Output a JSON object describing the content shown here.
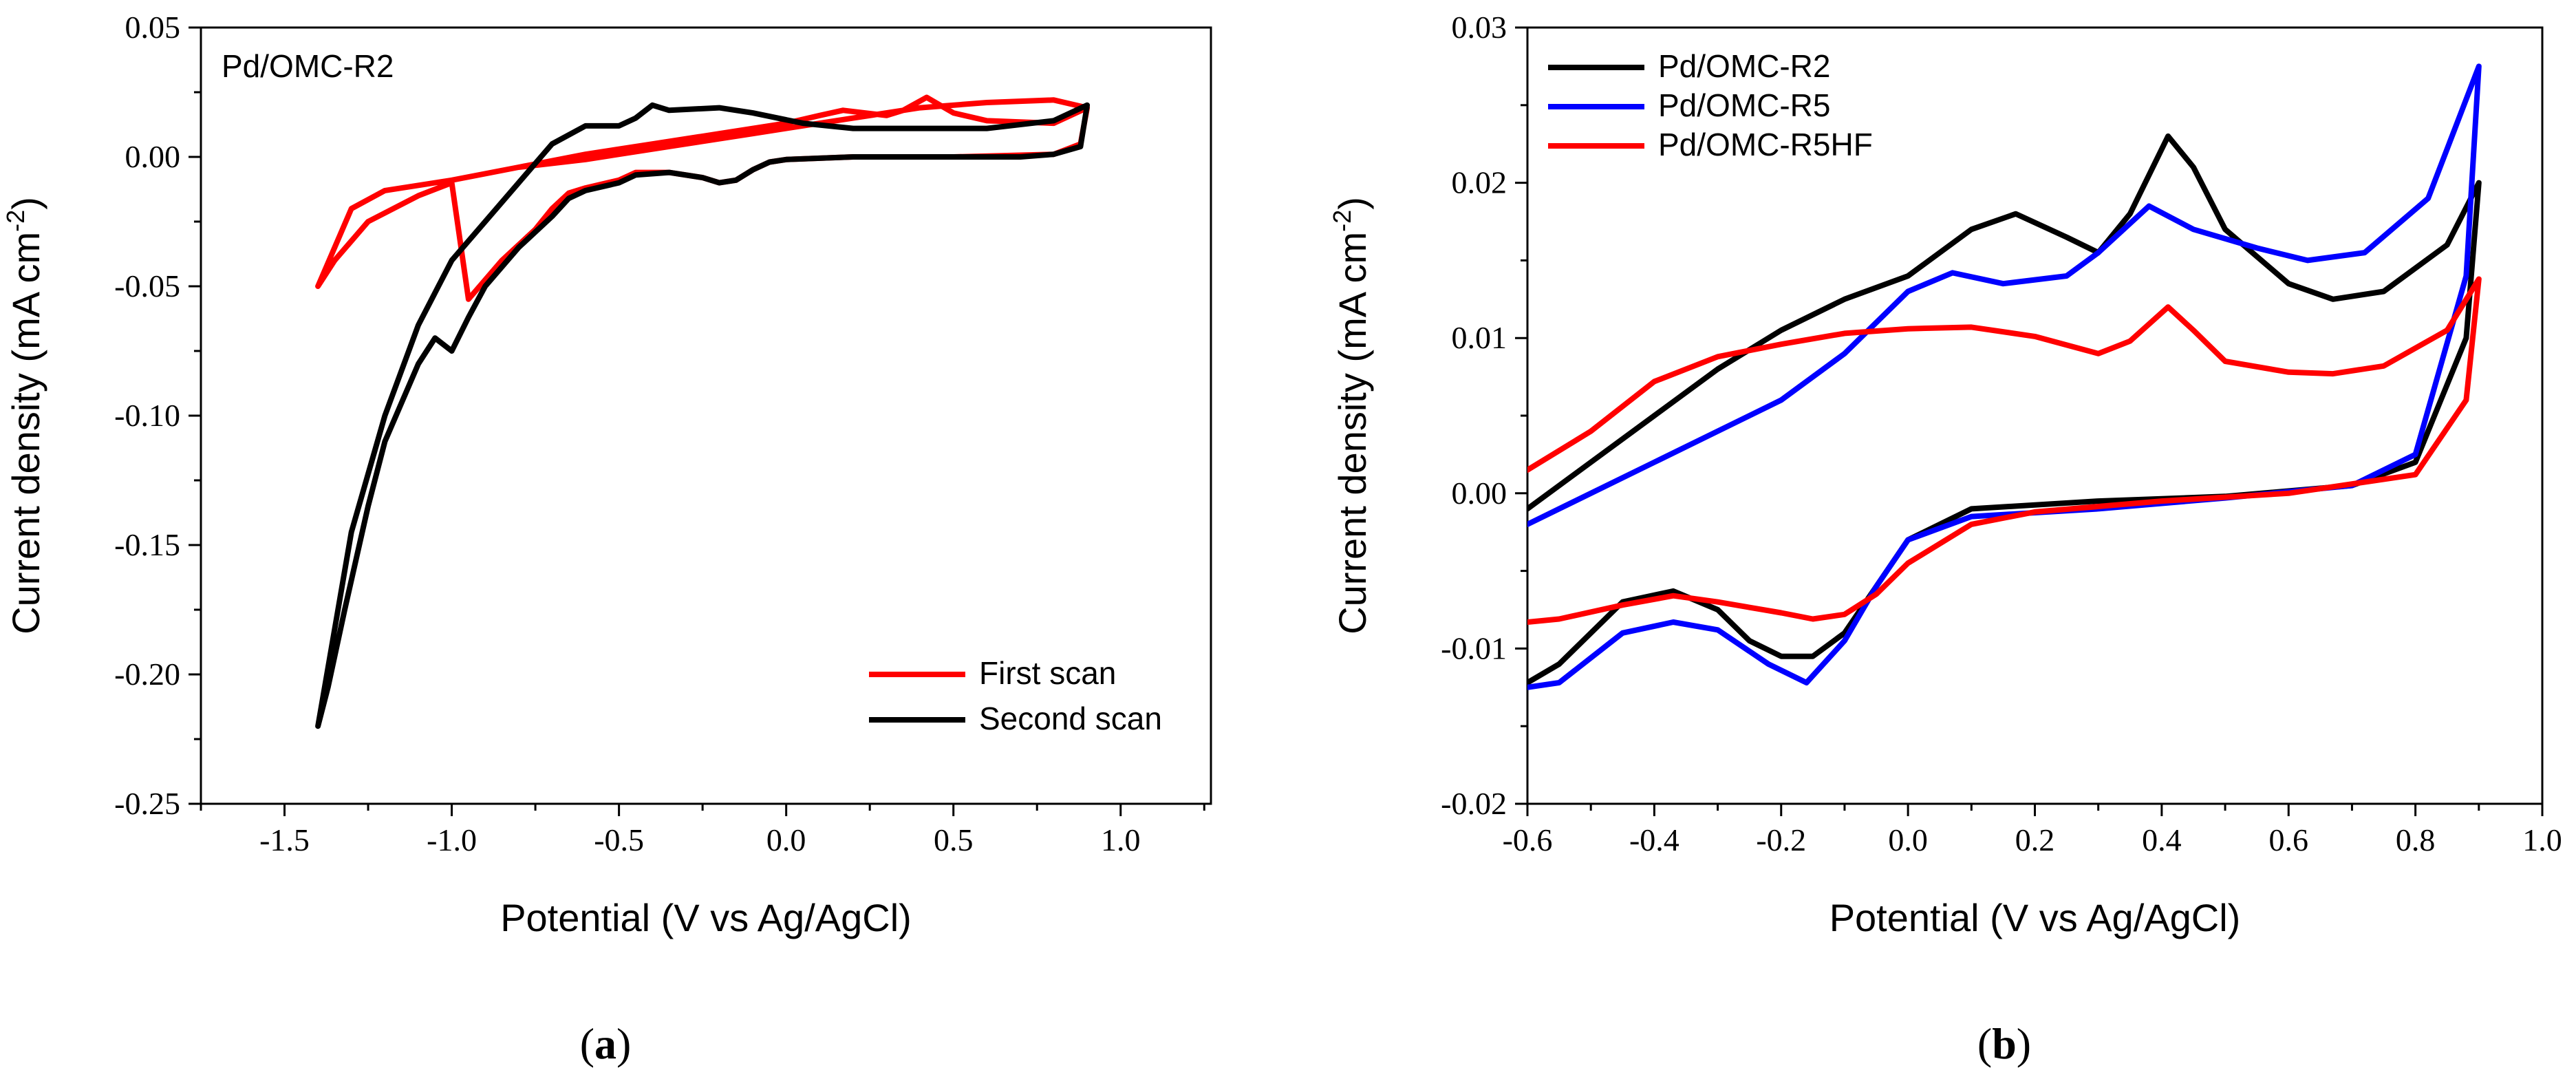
{
  "chart_data": [
    {
      "type": "line",
      "panel_label": "a",
      "annotation": "Pd/OMC-R2",
      "xlabel": "Potential (V vs Ag/AgCl)",
      "ylabel_main": "Current density (mA cm",
      "ylabel_sup": "-2",
      "ylabel_close": ")",
      "xlim": [
        -1.75,
        1.27
      ],
      "ylim": [
        -0.25,
        0.05
      ],
      "xticks": [
        -1.5,
        -1.0,
        -0.5,
        0.0,
        0.5,
        1.0
      ],
      "xtick_labels": [
        "-1.5",
        "-1.0",
        "-0.5",
        "0.0",
        "0.5",
        "1.0"
      ],
      "yticks": [
        -0.25,
        -0.2,
        -0.15,
        -0.1,
        -0.05,
        0.0,
        0.05
      ],
      "ytick_labels": [
        "-0.25",
        "-0.20",
        "-0.15",
        "-0.10",
        "-0.05",
        "0.00",
        "0.05"
      ],
      "legend_position": "bottom-right",
      "series": [
        {
          "name": "First scan",
          "color": "#ff0000",
          "x": [
            -1.0,
            -0.8,
            -0.6,
            -0.5,
            -0.4,
            -0.3,
            -0.2,
            -0.1,
            0.0,
            0.2,
            0.4,
            0.6,
            0.8,
            0.9,
            0.8,
            0.6,
            0.5,
            0.42,
            0.35,
            0.3,
            0.17,
            0.1,
            0.0,
            -0.2,
            -0.4,
            -0.6,
            -0.8,
            -1.0,
            -1.2,
            -1.3,
            -1.4,
            -1.35,
            -1.25,
            -1.1,
            -1.0,
            -0.95,
            -0.85,
            -0.75,
            -0.7,
            -0.65,
            -0.6,
            -0.5,
            -0.45,
            -0.35,
            -0.25,
            -0.2,
            -0.15,
            -0.1,
            -0.05,
            0.0,
            0.2,
            0.5,
            0.8,
            0.88,
            0.9
          ],
          "y": [
            -0.009,
            -0.004,
            -0.001,
            0.001,
            0.003,
            0.005,
            0.007,
            0.009,
            0.011,
            0.015,
            0.019,
            0.021,
            0.022,
            0.019,
            0.013,
            0.014,
            0.017,
            0.023,
            0.018,
            0.016,
            0.018,
            0.016,
            0.013,
            0.009,
            0.005,
            0.001,
            -0.004,
            -0.009,
            -0.013,
            -0.02,
            -0.05,
            -0.04,
            -0.025,
            -0.015,
            -0.01,
            -0.055,
            -0.04,
            -0.028,
            -0.02,
            -0.014,
            -0.012,
            -0.009,
            -0.006,
            -0.006,
            -0.008,
            -0.01,
            -0.009,
            -0.005,
            -0.002,
            -0.001,
            0.0,
            0.0,
            0.001,
            0.005,
            0.019
          ]
        },
        {
          "name": "Second scan",
          "color": "#000000",
          "x": [
            -1.0,
            -0.95,
            -0.9,
            -0.8,
            -0.7,
            -0.65,
            -0.6,
            -0.5,
            -0.45,
            -0.35,
            -0.25,
            -0.2,
            -0.15,
            -0.1,
            -0.05,
            0.0,
            0.2,
            0.5,
            0.7,
            0.8,
            0.88,
            0.9,
            0.8,
            0.6,
            0.4,
            0.2,
            0.05,
            -0.1,
            -0.2,
            -0.35,
            -0.4,
            -0.45,
            -0.5,
            -0.55,
            -0.6,
            -0.7,
            -0.8,
            -0.9,
            -1.0,
            -1.1,
            -1.2,
            -1.3,
            -1.4,
            -1.37,
            -1.32,
            -1.25,
            -1.2,
            -1.15,
            -1.1,
            -1.05,
            -1.0
          ],
          "y": [
            -0.075,
            -0.062,
            -0.05,
            -0.035,
            -0.023,
            -0.016,
            -0.013,
            -0.01,
            -0.007,
            -0.006,
            -0.008,
            -0.01,
            -0.009,
            -0.005,
            -0.002,
            -0.001,
            0.0,
            0.0,
            0.0,
            0.001,
            0.004,
            0.02,
            0.014,
            0.011,
            0.011,
            0.011,
            0.013,
            0.017,
            0.019,
            0.018,
            0.02,
            0.015,
            0.012,
            0.012,
            0.012,
            0.005,
            -0.01,
            -0.025,
            -0.04,
            -0.065,
            -0.1,
            -0.145,
            -0.22,
            -0.205,
            -0.175,
            -0.135,
            -0.11,
            -0.095,
            -0.08,
            -0.07,
            -0.075
          ]
        }
      ]
    },
    {
      "type": "line",
      "panel_label": "b",
      "xlabel": "Potential (V vs Ag/AgCl)",
      "ylabel_main": "Current density (mA cm",
      "ylabel_sup": "-2",
      "ylabel_close": ")",
      "xlim": [
        -0.6,
        1.0
      ],
      "ylim": [
        -0.02,
        0.03
      ],
      "xticks": [
        -0.6,
        -0.4,
        -0.2,
        0.0,
        0.2,
        0.4,
        0.6,
        0.8,
        1.0
      ],
      "xtick_labels": [
        "-0.6",
        "-0.4",
        "-0.2",
        "0.0",
        "0.2",
        "0.4",
        "0.6",
        "0.8",
        "1.0"
      ],
      "yticks": [
        -0.02,
        -0.01,
        0.0,
        0.01,
        0.02,
        0.03
      ],
      "ytick_labels": [
        "-0.02",
        "-0.01",
        "0.00",
        "0.01",
        "0.02",
        "0.03"
      ],
      "legend_position": "top-left",
      "series": [
        {
          "name": "Pd/OMC-R2",
          "color": "#000000",
          "x": [
            -0.6,
            -0.5,
            -0.4,
            -0.3,
            -0.2,
            -0.1,
            0.0,
            0.1,
            0.17,
            0.25,
            0.3,
            0.35,
            0.41,
            0.45,
            0.5,
            0.6,
            0.67,
            0.75,
            0.85,
            0.9,
            0.88,
            0.8,
            0.7,
            0.5,
            0.3,
            0.1,
            0.0,
            -0.05,
            -0.1,
            -0.15,
            -0.2,
            -0.25,
            -0.3,
            -0.37,
            -0.45,
            -0.55,
            -0.6
          ],
          "y": [
            -0.001,
            0.002,
            0.005,
            0.008,
            0.0105,
            0.0125,
            0.014,
            0.017,
            0.018,
            0.0165,
            0.0155,
            0.018,
            0.023,
            0.021,
            0.017,
            0.0135,
            0.0125,
            0.013,
            0.016,
            0.02,
            0.01,
            0.002,
            0.0005,
            -0.0002,
            -0.0005,
            -0.001,
            -0.003,
            -0.006,
            -0.009,
            -0.0105,
            -0.0105,
            -0.0095,
            -0.0075,
            -0.0063,
            -0.007,
            -0.011,
            -0.0122
          ]
        },
        {
          "name": "Pd/OMC-R5",
          "color": "#0000ff",
          "x": [
            -0.6,
            -0.4,
            -0.2,
            -0.1,
            0.0,
            0.07,
            0.15,
            0.25,
            0.3,
            0.38,
            0.45,
            0.55,
            0.63,
            0.72,
            0.82,
            0.9,
            0.88,
            0.8,
            0.7,
            0.5,
            0.3,
            0.1,
            0.0,
            -0.05,
            -0.1,
            -0.16,
            -0.22,
            -0.3,
            -0.37,
            -0.45,
            -0.55,
            -0.6
          ],
          "y": [
            -0.002,
            0.002,
            0.006,
            0.009,
            0.013,
            0.0142,
            0.0135,
            0.014,
            0.0155,
            0.0185,
            0.017,
            0.0158,
            0.015,
            0.0155,
            0.019,
            0.0275,
            0.014,
            0.0025,
            0.0005,
            -0.0003,
            -0.001,
            -0.0015,
            -0.003,
            -0.006,
            -0.0095,
            -0.0122,
            -0.011,
            -0.0088,
            -0.0083,
            -0.009,
            -0.0122,
            -0.0125
          ]
        },
        {
          "name": "Pd/OMC-R5HF",
          "color": "#ff0000",
          "x": [
            -0.6,
            -0.5,
            -0.4,
            -0.3,
            -0.2,
            -0.1,
            0.0,
            0.1,
            0.2,
            0.3,
            0.35,
            0.41,
            0.45,
            0.5,
            0.6,
            0.67,
            0.75,
            0.85,
            0.9,
            0.88,
            0.8,
            0.6,
            0.4,
            0.2,
            0.1,
            0.0,
            -0.05,
            -0.1,
            -0.15,
            -0.2,
            -0.3,
            -0.37,
            -0.45,
            -0.55,
            -0.6
          ],
          "y": [
            0.0015,
            0.004,
            0.0072,
            0.0088,
            0.0096,
            0.0103,
            0.0106,
            0.0107,
            0.0101,
            0.009,
            0.0098,
            0.012,
            0.0105,
            0.0085,
            0.0078,
            0.0077,
            0.0082,
            0.0105,
            0.0138,
            0.006,
            0.0012,
            0.0,
            -0.0005,
            -0.0012,
            -0.002,
            -0.0045,
            -0.0065,
            -0.0078,
            -0.0081,
            -0.0077,
            -0.007,
            -0.0066,
            -0.0072,
            -0.0081,
            -0.0083
          ]
        }
      ]
    }
  ]
}
